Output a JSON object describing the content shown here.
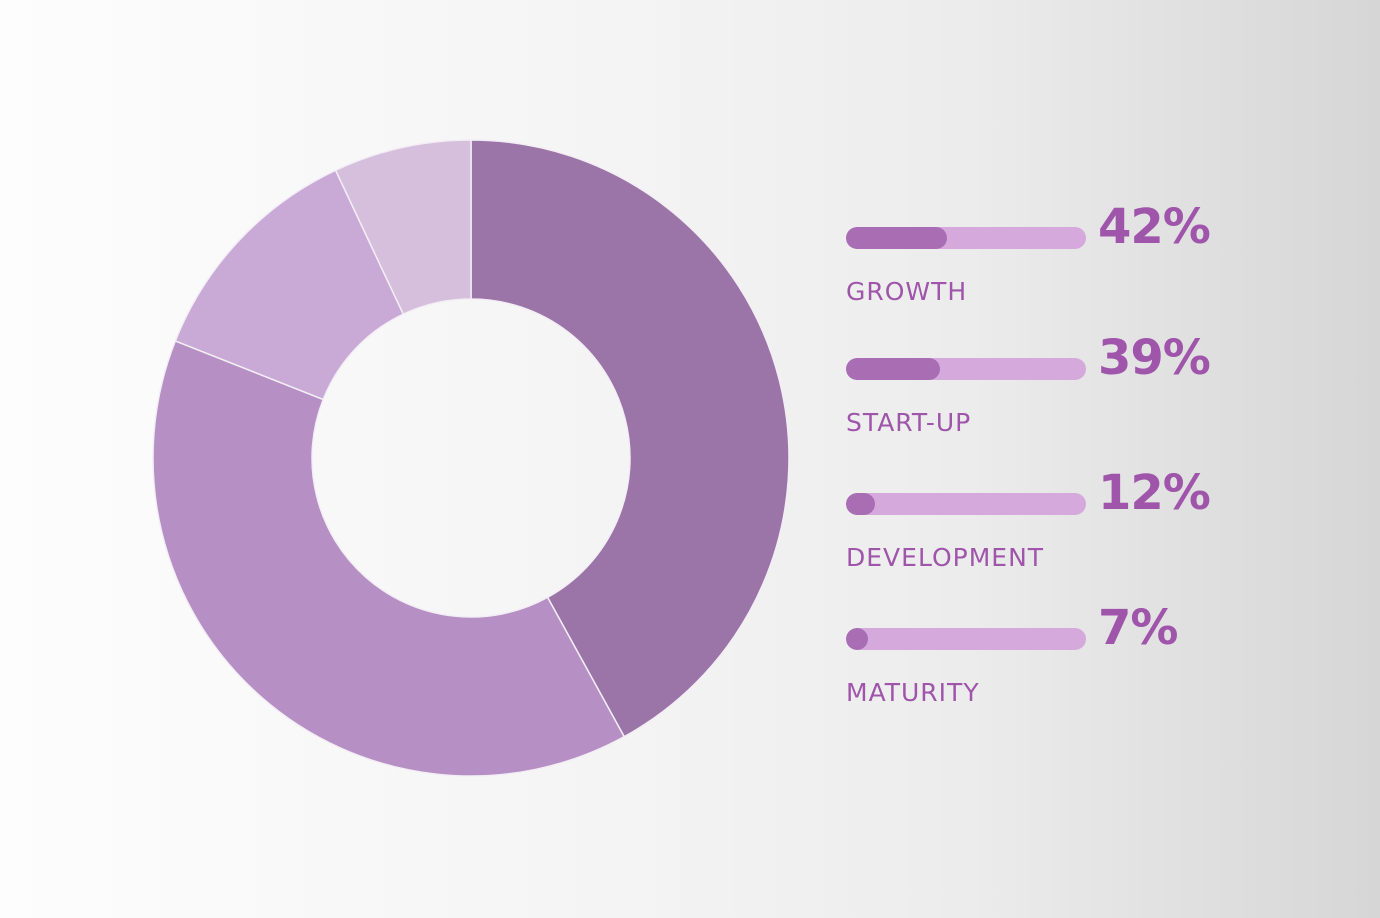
{
  "chart_data": {
    "type": "pie",
    "donut": true,
    "title": "",
    "categories": [
      "GROWTH",
      "START-UP",
      "DEVELOPMENT",
      "MATURITY"
    ],
    "values": [
      42,
      39,
      12,
      7
    ],
    "value_labels": [
      "42%",
      "39%",
      "12%",
      "7%"
    ],
    "unit": "%",
    "legend_position": "right",
    "slice_colors": [
      "#9b74a8",
      "#b68fc4",
      "#c9aad6",
      "#d6bfdd"
    ]
  },
  "colors": {
    "accent": "#9e55aa",
    "bar_fill": "#a86db3",
    "bar_track": "#d5a9dc",
    "slice_border": "#f3eef5"
  }
}
